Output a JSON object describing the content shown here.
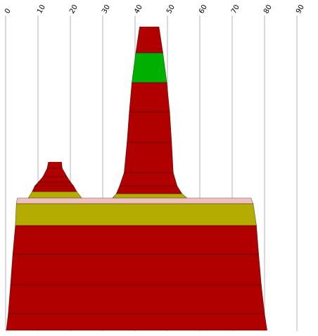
{
  "chart_data": {
    "type": "area",
    "title": "",
    "xlabel": "",
    "ylabel": "",
    "x_axis": {
      "min": 0,
      "max": 90,
      "position": "top",
      "ticks": [
        0,
        10,
        20,
        30,
        40,
        50,
        60,
        70,
        80,
        90
      ],
      "tick_labels": [
        "0",
        "10",
        "20",
        "30",
        "40",
        "50",
        "60",
        "70",
        "80",
        "90"
      ],
      "label_rotation": -60
    },
    "grid": true,
    "legend": "none",
    "colors": {
      "red": "#b00000",
      "olive": "#b4ac00",
      "green": "#00b000",
      "pink": "#f0c0c0",
      "grid": "#b4b4b4"
    },
    "series": [
      {
        "shape": "main-block",
        "bands": [
          {
            "color": "red",
            "bottom_left": 0.2,
            "bottom_right": 80.8,
            "top_left": 0.8,
            "top_right": 80.0
          },
          {
            "color": "red",
            "bottom_left": 0.8,
            "bottom_right": 80.0,
            "top_left": 1.5,
            "top_right": 79.0
          },
          {
            "color": "red",
            "bottom_left": 1.5,
            "bottom_right": 79.0,
            "top_left": 2.2,
            "top_right": 78.2
          },
          {
            "color": "red",
            "bottom_left": 2.2,
            "bottom_right": 78.2,
            "top_left": 3.0,
            "top_right": 77.5
          },
          {
            "color": "olive",
            "bottom_left": 3.0,
            "bottom_right": 77.5,
            "top_left": 3.3,
            "top_right": 76.5
          },
          {
            "color": "pink",
            "bottom_left": 3.3,
            "bottom_right": 76.5,
            "top_left": 3.6,
            "top_right": 75.8
          }
        ]
      },
      {
        "shape": "left-peak",
        "bands": [
          {
            "color": "olive",
            "bottom_left": 7.0,
            "bottom_right": 23.5,
            "top_left": 8.2,
            "top_right": 22.0
          },
          {
            "color": "red",
            "bottom_left": 8.2,
            "bottom_right": 22.0,
            "top_left": 9.0,
            "top_right": 21.0
          },
          {
            "color": "red",
            "bottom_left": 9.0,
            "bottom_right": 21.0,
            "top_left": 10.2,
            "top_right": 20.0
          },
          {
            "color": "red",
            "bottom_left": 10.2,
            "bottom_right": 20.0,
            "top_left": 11.5,
            "top_right": 19.0
          },
          {
            "color": "red",
            "bottom_left": 11.5,
            "bottom_right": 19.0,
            "top_left": 12.8,
            "top_right": 17.5
          },
          {
            "color": "red",
            "bottom_left": 12.8,
            "bottom_right": 17.5,
            "top_left": 13.2,
            "top_right": 17.3
          }
        ]
      },
      {
        "shape": "central-peak",
        "bands": [
          {
            "color": "olive",
            "bottom_left": 33.0,
            "bottom_right": 56.0,
            "top_left": 34.2,
            "top_right": 54.5
          },
          {
            "color": "red",
            "bottom_left": 34.2,
            "bottom_right": 54.5,
            "top_left": 35.2,
            "top_right": 53.0
          },
          {
            "color": "red",
            "bottom_left": 35.2,
            "bottom_right": 53.0,
            "top_left": 36.6,
            "top_right": 51.8
          },
          {
            "color": "red",
            "bottom_left": 36.6,
            "bottom_right": 51.8,
            "top_left": 37.5,
            "top_right": 51.3
          },
          {
            "color": "red",
            "bottom_left": 37.5,
            "bottom_right": 51.3,
            "top_left": 38.2,
            "top_right": 50.7
          },
          {
            "color": "red",
            "bottom_left": 38.2,
            "bottom_right": 50.7,
            "top_left": 39.0,
            "top_right": 49.8
          },
          {
            "color": "green",
            "bottom_left": 39.0,
            "bottom_right": 49.8,
            "top_left": 40.2,
            "top_right": 48.6
          },
          {
            "color": "red",
            "bottom_left": 40.2,
            "bottom_right": 48.6,
            "top_left": 41.4,
            "top_right": 47.4
          }
        ]
      }
    ]
  }
}
